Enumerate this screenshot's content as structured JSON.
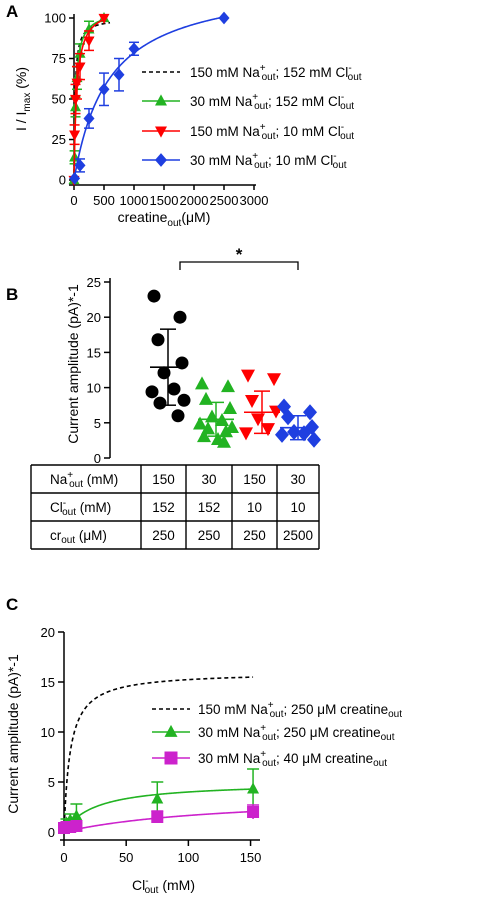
{
  "chart_data": [
    {
      "panel_label": "A",
      "type": "scatter",
      "xlabel": {
        "main": "creatine",
        "sub": "out",
        "tail": "(μM)"
      },
      "ylabel": {
        "main": "I / I",
        "sub": "max",
        "tail": " (%)"
      },
      "xlim": [
        0,
        3000
      ],
      "ylim": [
        0,
        100
      ],
      "xticks": [
        "0",
        "500",
        "1000",
        "1500",
        "2000",
        "2500",
        "3000"
      ],
      "yticks": [
        "0",
        "25",
        "50",
        "75",
        "100"
      ],
      "series": [
        {
          "name": "150 mM Na⁺out; 152 mM Cl⁻out",
          "legend_parts": [
            "150 mM Na",
            "+",
            "out",
            "; 152 mM Cl",
            "-",
            "out"
          ],
          "style": "dashed",
          "color": "#000000",
          "marker": "none",
          "fit": {
            "vmax": 100,
            "km": 18
          }
        },
        {
          "name": "30 mM Na⁺out; 152 mM Cl⁻out",
          "legend_parts": [
            "30 mM Na",
            "+",
            "out",
            "; 152 mM Cl",
            "-",
            "out"
          ],
          "style": "solid",
          "color": "#22b322",
          "marker": "triangle-up",
          "fit": {
            "vmax": 105,
            "km": 30
          },
          "x": [
            0,
            10,
            25,
            50,
            100,
            250,
            500
          ],
          "y": [
            0,
            14,
            45,
            63,
            78,
            93,
            100
          ],
          "err": [
            0,
            4,
            6,
            7,
            6,
            5,
            0
          ]
        },
        {
          "name": "150 mM Na⁺out; 10 mM Cl⁻out",
          "legend_parts": [
            "150 mM Na",
            "+",
            "out",
            "; 10 mM Cl",
            "-",
            "out"
          ],
          "style": "solid",
          "color": "#ff0000",
          "marker": "triangle-down",
          "fit": {
            "vmax": 108,
            "km": 45
          },
          "x": [
            0,
            10,
            25,
            50,
            100,
            250,
            500
          ],
          "y": [
            0,
            28,
            50,
            60,
            70,
            86,
            100
          ],
          "err": [
            0,
            6,
            9,
            10,
            8,
            6,
            0
          ]
        },
        {
          "name": "30 mM Na⁺out; 10 mM Cl⁻out",
          "legend_parts": [
            "30 mM Na",
            "+",
            "out",
            "; 10 mM Cl",
            "-",
            "out"
          ],
          "style": "solid",
          "color": "#1f3fe0",
          "marker": "diamond",
          "fit": {
            "vmax": 124,
            "km": 580
          },
          "x": [
            10,
            100,
            250,
            500,
            750,
            1000,
            2500
          ],
          "y": [
            1,
            9,
            38,
            56,
            65,
            81,
            100
          ],
          "err": [
            0,
            4,
            6,
            10,
            10,
            4,
            0
          ]
        }
      ]
    },
    {
      "panel_label": "B",
      "type": "scatter",
      "ylabel": "Current amplitude (pA)*-1",
      "ylim": [
        0,
        25
      ],
      "yticks": [
        "0",
        "5",
        "10",
        "15",
        "20",
        "25"
      ],
      "significance": "*",
      "groups": [
        {
          "color": "#000000",
          "marker": "circle",
          "mean": 12.9,
          "sd": 5.4,
          "values": [
            23,
            20,
            16.8,
            13.5,
            12.1,
            9.8,
            9.4,
            8.2,
            7.8,
            6.0
          ]
        },
        {
          "color": "#22b322",
          "marker": "triangle-up",
          "mean": 5.5,
          "sd": 2.4,
          "values": [
            10.5,
            10.1,
            8.3,
            7.0,
            5.8,
            5.3,
            4.8,
            4.3,
            4.1,
            3.7,
            3.0,
            2.6,
            2.2
          ]
        },
        {
          "color": "#ff0000",
          "marker": "triangle-down",
          "mean": 6.5,
          "sd": 3.0,
          "values": [
            11.8,
            11.3,
            8.2,
            6.7,
            5.6,
            4.2,
            3.6
          ]
        },
        {
          "color": "#1f3fe0",
          "marker": "diamond",
          "mean": 4.3,
          "sd": 1.7,
          "values": [
            7.3,
            6.5,
            5.8,
            4.4,
            3.7,
            3.5,
            3.3,
            2.6
          ]
        }
      ],
      "table": {
        "rows": [
          {
            "label_parts": [
              "Na",
              "+",
              "out",
              " (mM)"
            ],
            "values": [
              "150",
              "30",
              "150",
              "30"
            ]
          },
          {
            "label_parts": [
              "Cl",
              "-",
              "out",
              " (mM)"
            ],
            "values": [
              "152",
              "152",
              "10",
              "10"
            ]
          },
          {
            "label_parts": [
              "cr",
              "",
              "out",
              " (μM)"
            ],
            "values": [
              "250",
              "250",
              "250",
              "2500"
            ]
          }
        ]
      }
    },
    {
      "panel_label": "C",
      "type": "scatter",
      "xlabel": {
        "main": "Cl",
        "sup": "-",
        "sub": "out",
        "tail": " (mM)"
      },
      "ylabel": "Current amplitude (pA)*-1",
      "xlim": [
        0,
        160
      ],
      "ylim": [
        0,
        20
      ],
      "xticks": [
        "0",
        "50",
        "100",
        "150"
      ],
      "yticks": [
        "0",
        "5",
        "10",
        "15",
        "20"
      ],
      "series": [
        {
          "name": "150 mM Na⁺out; 250 μM creatineout",
          "legend_parts": [
            "150 mM Na",
            "+",
            "out",
            "; 250 μM creatine",
            "",
            "out"
          ],
          "style": "dashed",
          "color": "#000000",
          "marker": "none",
          "fit": {
            "vmax": 16.0,
            "km": 5.0
          }
        },
        {
          "name": "30 mM Na⁺out; 250 μM creatineout",
          "legend_parts": [
            "30 mM Na",
            "+",
            "out",
            "; 250 μM creatine",
            "",
            "out"
          ],
          "style": "solid",
          "color": "#22b322",
          "marker": "triangle-up",
          "fit": {
            "vmax": 5.0,
            "km": 25
          },
          "x": [
            0,
            2,
            5,
            10,
            75,
            152
          ],
          "y": [
            0.5,
            0.9,
            1.2,
            1.6,
            3.3,
            4.3
          ],
          "err": [
            0.2,
            0.4,
            0.6,
            1.2,
            1.7,
            2.0
          ]
        },
        {
          "name": "30 mM Na⁺out; 40 μM creatineout",
          "legend_parts": [
            "30 mM Na",
            "+",
            "out",
            "; 40 μM creatine",
            "",
            "out"
          ],
          "style": "solid",
          "color": "#cc22cc",
          "marker": "square",
          "fit": {
            "vmax": 3.8,
            "km": 130
          },
          "x": [
            0,
            2,
            5,
            10,
            75,
            152
          ],
          "y": [
            0.4,
            0.5,
            0.5,
            0.6,
            1.5,
            2.0
          ],
          "err": [
            0.2,
            0.2,
            0.2,
            0.3,
            0.6,
            0.7
          ]
        }
      ]
    }
  ]
}
